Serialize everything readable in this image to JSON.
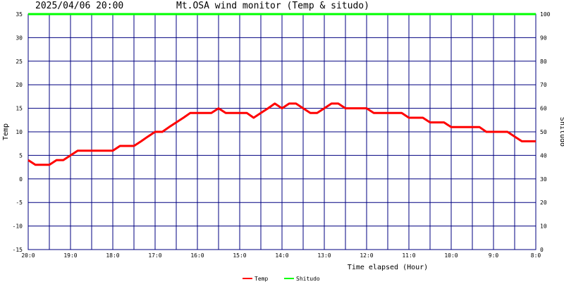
{
  "header": {
    "datetime": "2025/04/06 20:00",
    "title": "Mt.OSA wind monitor (Temp & situdo)"
  },
  "colors": {
    "grid": "#000080",
    "temp": "#ff0000",
    "shitudo": "#00ff00"
  },
  "chart_data": {
    "type": "line",
    "title": "Mt.OSA wind monitor (Temp & situdo)",
    "xlabel": "Time elapsed (Hour)",
    "ylabel": "Temp",
    "y2label": "Shitudo",
    "ylim": [
      -15,
      35
    ],
    "y2lim": [
      0,
      100
    ],
    "yticks": [
      35,
      30,
      25,
      20,
      15,
      10,
      5,
      0,
      -5,
      -10,
      -15
    ],
    "y2ticks": [
      100,
      90,
      80,
      70,
      60,
      50,
      40,
      30,
      20,
      10,
      0
    ],
    "xlim": [
      0,
      12
    ],
    "xticks": [
      {
        "x": 0,
        "label": "20:0"
      },
      {
        "x": 1,
        "label": "19:0"
      },
      {
        "x": 2,
        "label": "18:0"
      },
      {
        "x": 3,
        "label": "17:0"
      },
      {
        "x": 4,
        "label": "16:0"
      },
      {
        "x": 5,
        "label": "15:0"
      },
      {
        "x": 6,
        "label": "14:0"
      },
      {
        "x": 7,
        "label": "13:0"
      },
      {
        "x": 8,
        "label": "12:0"
      },
      {
        "x": 9,
        "label": "11:0"
      },
      {
        "x": 10,
        "label": "10:0"
      },
      {
        "x": 11,
        "label": "9:0"
      },
      {
        "x": 12,
        "label": "8:0"
      }
    ],
    "grid": true,
    "legend_position": "bottom-center",
    "series": [
      {
        "name": "Temp",
        "axis": "left",
        "color": "#ff0000",
        "points": [
          [
            0,
            4
          ],
          [
            0.17,
            3
          ],
          [
            0.5,
            3
          ],
          [
            0.67,
            4
          ],
          [
            0.83,
            4
          ],
          [
            1.0,
            5
          ],
          [
            1.17,
            6
          ],
          [
            2.0,
            6
          ],
          [
            2.17,
            7
          ],
          [
            2.5,
            7
          ],
          [
            2.67,
            8
          ],
          [
            2.83,
            9
          ],
          [
            3.0,
            10
          ],
          [
            3.17,
            10
          ],
          [
            3.33,
            11
          ],
          [
            3.5,
            12
          ],
          [
            3.67,
            13
          ],
          [
            3.83,
            14
          ],
          [
            4.33,
            14
          ],
          [
            4.5,
            15
          ],
          [
            4.67,
            14
          ],
          [
            5.17,
            14
          ],
          [
            5.33,
            13
          ],
          [
            5.5,
            14
          ],
          [
            5.67,
            15
          ],
          [
            5.83,
            16
          ],
          [
            6.0,
            15
          ],
          [
            6.17,
            16
          ],
          [
            6.33,
            16
          ],
          [
            6.5,
            15
          ],
          [
            6.67,
            14
          ],
          [
            6.83,
            14
          ],
          [
            7.0,
            15
          ],
          [
            7.17,
            16
          ],
          [
            7.33,
            16
          ],
          [
            7.5,
            15
          ],
          [
            8.0,
            15
          ],
          [
            8.17,
            14
          ],
          [
            8.83,
            14
          ],
          [
            9.0,
            13
          ],
          [
            9.33,
            13
          ],
          [
            9.5,
            12
          ],
          [
            9.83,
            12
          ],
          [
            10.0,
            11
          ],
          [
            10.67,
            11
          ],
          [
            10.83,
            10
          ],
          [
            11.33,
            10
          ],
          [
            11.5,
            9
          ],
          [
            11.67,
            8
          ],
          [
            12.0,
            8
          ]
        ]
      },
      {
        "name": "Shitudo",
        "axis": "right",
        "color": "#00ff00",
        "points": [
          [
            0,
            100
          ],
          [
            12,
            100
          ]
        ]
      }
    ]
  }
}
